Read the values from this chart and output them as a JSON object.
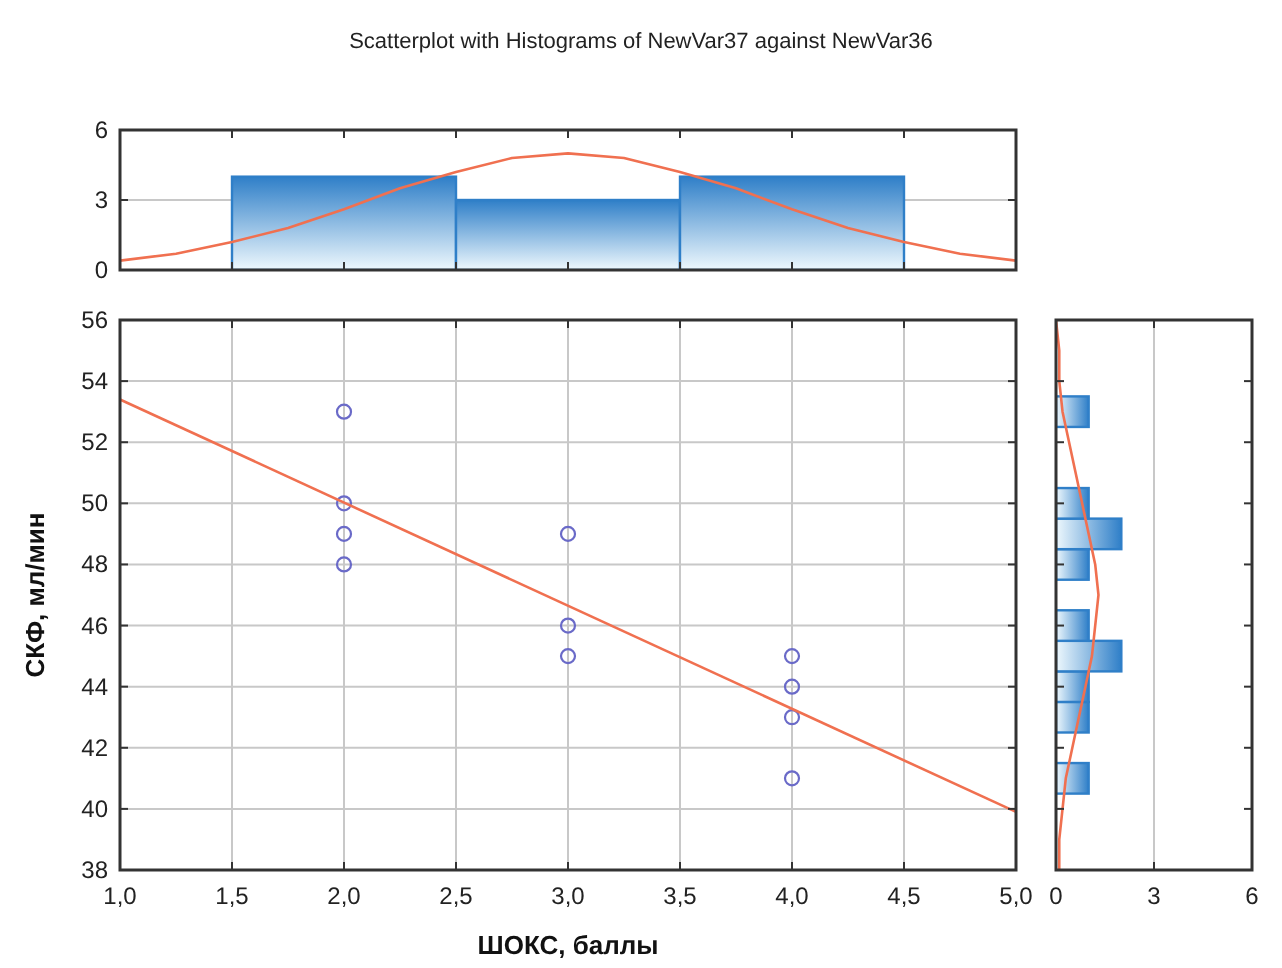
{
  "chart_data": [
    {
      "type": "histogram",
      "title": "Scatterplot with Histograms of NewVar37 against NewVar36",
      "xlim": [
        1,
        5
      ],
      "xticks": [
        {
          "value": 1,
          "label": null
        },
        {
          "value": 1.5,
          "label": null
        },
        {
          "value": 2,
          "label": null
        },
        {
          "value": 2.5,
          "label": null
        },
        {
          "value": 3,
          "label": null
        },
        {
          "value": 3.5,
          "label": null
        },
        {
          "value": 4,
          "label": null
        },
        {
          "value": 4.5,
          "label": null
        },
        {
          "value": 5,
          "label": null
        }
      ],
      "ylim": [
        0,
        6
      ],
      "yticks": [
        0,
        3,
        6
      ],
      "grid": "y",
      "tick_labels": "y",
      "series": [
        {
          "color": "#2f7fc8",
          "bins": [
            1.5,
            2.5,
            3.5,
            4.5
          ],
          "values": [
            4,
            3,
            4
          ]
        },
        {
          "type": "line",
          "color": "#f07050",
          "x": [
            1,
            1.25,
            1.5,
            1.75,
            2,
            2.25,
            2.5,
            2.75,
            3,
            3.25,
            3.5,
            3.75,
            4,
            4.25,
            4.5,
            4.75,
            5
          ],
          "values": [
            0.4,
            0.7,
            1.2,
            1.8,
            2.6,
            3.5,
            4.2,
            4.8,
            5.0,
            4.8,
            4.2,
            3.5,
            2.6,
            1.8,
            1.2,
            0.7,
            0.4
          ]
        }
      ]
    },
    {
      "type": "scatter",
      "xlabel": "ШОКС, баллы",
      "ylabel": "СКФ, мл/мин",
      "xlim": [
        1,
        5
      ],
      "xticks": [
        {
          "value": 1,
          "label": "1,0"
        },
        {
          "value": 1.5,
          "label": "1,5"
        },
        {
          "value": 2,
          "label": "2,0"
        },
        {
          "value": 2.5,
          "label": "2,5"
        },
        {
          "value": 3,
          "label": "3,0"
        },
        {
          "value": 3.5,
          "label": "3,5"
        },
        {
          "value": 4,
          "label": "4,0"
        },
        {
          "value": 4.5,
          "label": "4,5"
        },
        {
          "value": 5,
          "label": "5,0"
        }
      ],
      "ylim": [
        38,
        56
      ],
      "yticks": [
        38,
        40,
        42,
        44,
        46,
        48,
        50,
        52,
        54,
        56
      ],
      "grid": true,
      "series": [
        {
          "marker": "circle",
          "color": "#6a6ac8",
          "x": [
            2,
            2,
            2,
            2,
            3,
            3,
            3,
            4,
            4,
            4,
            4
          ],
          "values": [
            53,
            50,
            49,
            48,
            49,
            46,
            45,
            45,
            44,
            43,
            41
          ]
        },
        {
          "type": "line",
          "color": "#f07050",
          "x": [
            1,
            5
          ],
          "values": [
            53.4,
            39.9
          ]
        }
      ]
    },
    {
      "type": "histogram",
      "orientation": "horizontal",
      "xlim": [
        0,
        6
      ],
      "xticks": [
        0,
        3,
        6
      ],
      "ylim": [
        38,
        56
      ],
      "yticks": [
        {
          "value": 38,
          "label": null
        },
        {
          "value": 40,
          "label": null
        },
        {
          "value": 42,
          "label": null
        },
        {
          "value": 44,
          "label": null
        },
        {
          "value": 46,
          "label": null
        },
        {
          "value": 48,
          "label": null
        },
        {
          "value": 50,
          "label": null
        },
        {
          "value": 52,
          "label": null
        },
        {
          "value": 54,
          "label": null
        },
        {
          "value": 56,
          "label": null
        }
      ],
      "grid": "x",
      "tick_labels": "x",
      "series": [
        {
          "color": "#2f7fc8",
          "bins": [
            40.5,
            41.5,
            42.5,
            43.5,
            44.5,
            45.5,
            46.5,
            47.5,
            48.5,
            49.5,
            50.5,
            51.5,
            52.5,
            53.5
          ],
          "values": [
            1,
            0,
            1,
            1,
            2,
            1,
            0,
            1,
            2,
            1,
            0,
            0,
            1
          ]
        },
        {
          "type": "line",
          "color": "#f07050",
          "x": [
            38,
            39,
            40,
            41,
            42,
            43,
            44,
            45,
            46,
            47,
            48,
            49,
            50,
            51,
            52,
            53,
            54,
            55,
            56
          ],
          "values": [
            0.1,
            0.1,
            0.2,
            0.3,
            0.5,
            0.7,
            0.9,
            1.1,
            1.2,
            1.3,
            1.2,
            1.0,
            0.8,
            0.6,
            0.4,
            0.2,
            0.1,
            0.1,
            0.0
          ]
        }
      ]
    }
  ]
}
